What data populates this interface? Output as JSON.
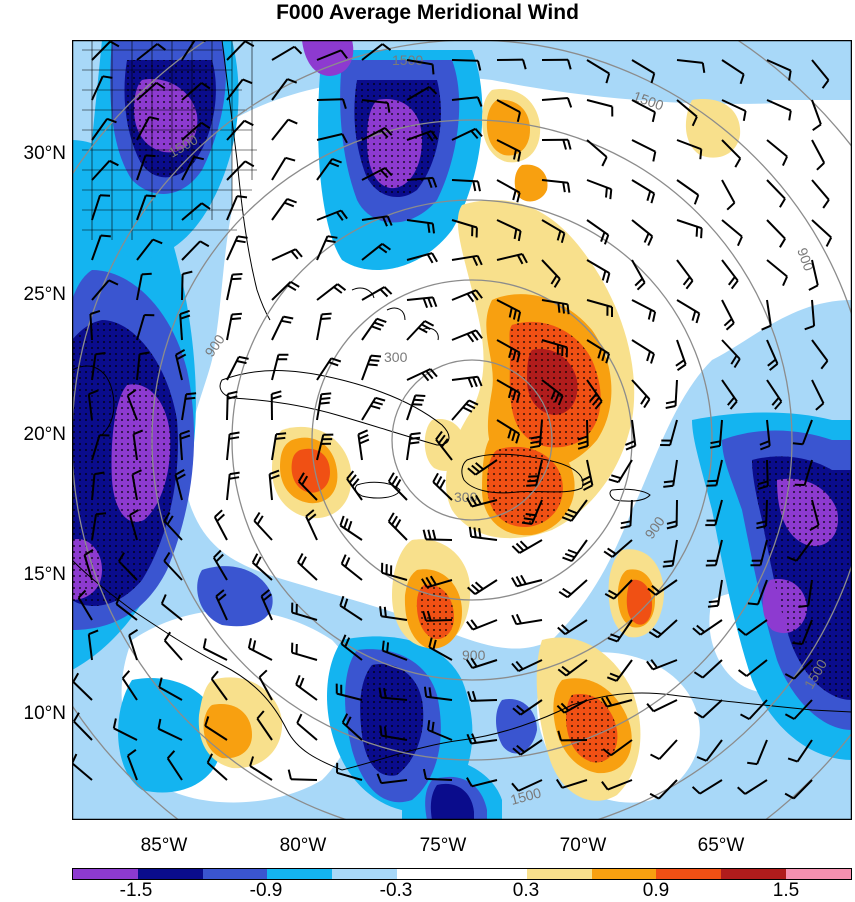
{
  "title": "F000 Average Meridional Wind",
  "lat_labels": [
    "30°N",
    "25°N",
    "20°N",
    "15°N",
    "10°N"
  ],
  "lon_labels": [
    "85°W",
    "80°W",
    "75°W",
    "70°W",
    "65°W"
  ],
  "contour_labels": [
    "300",
    "300",
    "900",
    "900",
    "900",
    "900",
    "1500",
    "1500",
    "1500",
    "1500",
    "1500"
  ],
  "colorbar": {
    "labels": [
      "-1.5",
      "-0.9",
      "-0.3",
      "0.3",
      "0.9",
      "1.5"
    ],
    "colors": [
      "#8d3ad0",
      "#0a0c8c",
      "#3a55d0",
      "#14b4f0",
      "#a8d8f8",
      "#ffffff",
      "#ffffff",
      "#f8e08c",
      "#f8a010",
      "#f05014",
      "#b01c1c",
      "#f590b0"
    ]
  },
  "map_colors": {
    "deep_purple": "#8d3ad0",
    "dark_blue": "#0a0c8c",
    "mid_blue": "#3a55d0",
    "cyan": "#14b4f0",
    "light_blue": "#a8d8f8",
    "yellow": "#f8e08c",
    "orange": "#f8a010",
    "red_orange": "#f05014",
    "dark_red": "#b01c1c"
  }
}
